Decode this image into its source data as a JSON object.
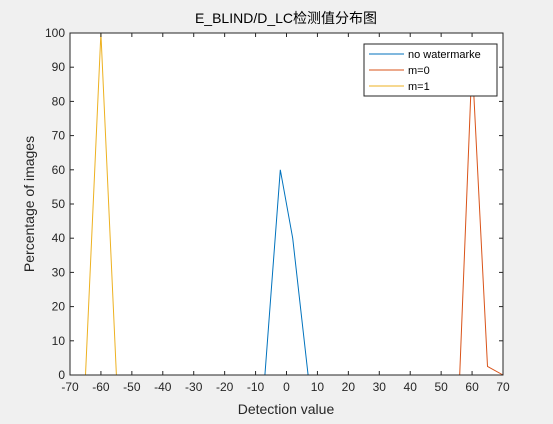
{
  "chart_data": {
    "type": "line",
    "title": "E_BLIND/D_LC检测值分布图",
    "xlabel": "Detection value",
    "ylabel": "Percentage of images",
    "xlim": [
      -70,
      70
    ],
    "ylim": [
      0,
      100
    ],
    "xticks": [
      -70,
      -60,
      -50,
      -40,
      -30,
      -20,
      -10,
      0,
      10,
      20,
      30,
      40,
      50,
      60,
      70
    ],
    "yticks": [
      0,
      10,
      20,
      30,
      40,
      50,
      60,
      70,
      80,
      90,
      100
    ],
    "grid": false,
    "legend_position": "top-right",
    "series": [
      {
        "name": "no watermarke",
        "color": "#0072bd",
        "points": [
          [
            -70,
            0
          ],
          [
            -7,
            0
          ],
          [
            -2,
            60
          ],
          [
            2,
            40
          ],
          [
            7,
            0
          ],
          [
            70,
            0
          ]
        ]
      },
      {
        "name": "m=0",
        "color": "#d95319",
        "points": [
          [
            -70,
            0
          ],
          [
            56,
            0
          ],
          [
            60,
            92
          ],
          [
            65,
            2.5
          ],
          [
            70,
            0
          ]
        ]
      },
      {
        "name": "m=1",
        "color": "#edb120",
        "points": [
          [
            -65,
            0
          ],
          [
            -60,
            100
          ],
          [
            -55,
            0
          ],
          [
            70,
            0
          ]
        ]
      }
    ]
  }
}
